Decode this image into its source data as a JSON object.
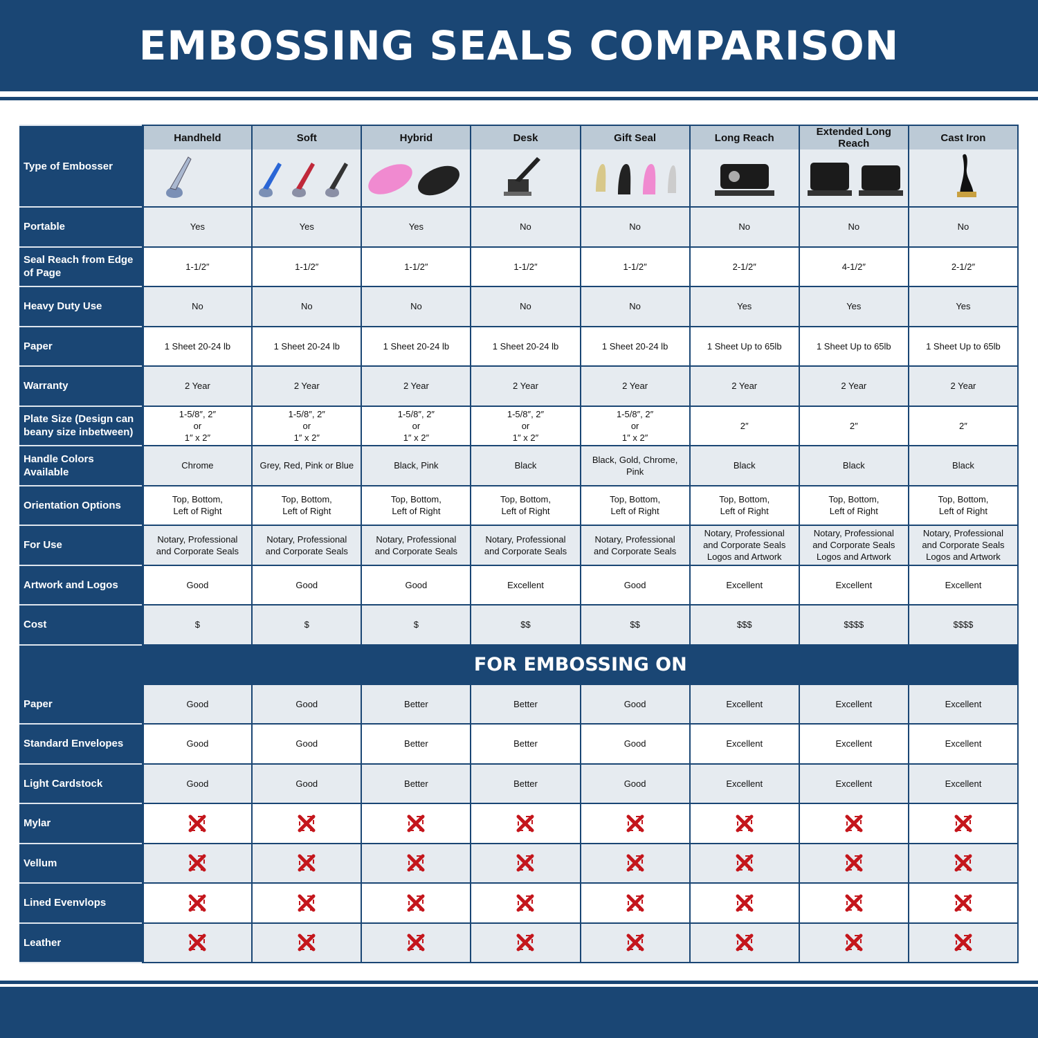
{
  "title": "EMBOSSING SEALS COMPARISON",
  "colors": {
    "brand_blue": "#1a4674",
    "header_grey": "#bccad6",
    "row_grey": "#e6ebf0",
    "x_red": "#c4161c"
  },
  "type_label": "Type of Embosser",
  "columns": [
    "Handheld",
    "Soft",
    "Hybrid",
    "Desk",
    "Gift Seal",
    "Long Reach",
    "Extended Long Reach",
    "Cast Iron"
  ],
  "rows": [
    {
      "label": "Portable",
      "values": [
        "Yes",
        "Yes",
        "Yes",
        "No",
        "No",
        "No",
        "No",
        "No"
      ]
    },
    {
      "label": "Seal Reach from Edge of Page",
      "values": [
        "1-1/2″",
        "1-1/2″",
        "1-1/2″",
        "1-1/2″",
        "1-1/2″",
        "2-1/2″",
        "4-1/2″",
        "2-1/2″"
      ]
    },
    {
      "label": "Heavy Duty Use",
      "values": [
        "No",
        "No",
        "No",
        "No",
        "No",
        "Yes",
        "Yes",
        "Yes"
      ]
    },
    {
      "label": "Paper",
      "values": [
        "1 Sheet 20-24 lb",
        "1 Sheet 20-24 lb",
        "1 Sheet 20-24 lb",
        "1 Sheet 20-24 lb",
        "1 Sheet 20-24 lb",
        "1 Sheet Up to 65lb",
        "1 Sheet Up to 65lb",
        "1 Sheet Up to 65lb"
      ]
    },
    {
      "label": "Warranty",
      "values": [
        "2 Year",
        "2 Year",
        "2 Year",
        "2 Year",
        "2 Year",
        "2 Year",
        "2 Year",
        "2 Year"
      ]
    },
    {
      "label": "Plate Size (Design can beany size inbetween)",
      "values": [
        "1-5/8″, 2″\nor\n1″ x 2″",
        "1-5/8″, 2″\nor\n1″ x 2″",
        "1-5/8″, 2″\nor\n1″ x 2″",
        "1-5/8″, 2″\nor\n1″ x 2″",
        "1-5/8″, 2″\nor\n1″ x 2″",
        "2″",
        "2″",
        "2″"
      ]
    },
    {
      "label": "Handle Colors Available",
      "values": [
        "Chrome",
        "Grey, Red, Pink or Blue",
        "Black, Pink",
        "Black",
        "Black, Gold, Chrome, Pink",
        "Black",
        "Black",
        "Black"
      ]
    },
    {
      "label": "Orientation Options",
      "values": [
        "Top, Bottom,\nLeft of Right",
        "Top, Bottom,\nLeft of Right",
        "Top, Bottom,\nLeft of Right",
        "Top, Bottom,\nLeft of Right",
        "Top, Bottom,\nLeft of Right",
        "Top, Bottom,\nLeft of Right",
        "Top, Bottom,\nLeft of Right",
        "Top, Bottom,\nLeft of Right"
      ]
    },
    {
      "label": "For Use",
      "values": [
        "Notary, Professional\nand Corporate Seals",
        "Notary, Professional\nand Corporate Seals",
        "Notary, Professional\nand Corporate Seals",
        "Notary, Professional\nand Corporate Seals",
        "Notary, Professional\nand Corporate Seals",
        "Notary, Professional\nand Corporate Seals\nLogos and Artwork",
        "Notary, Professional\nand Corporate Seals\nLogos and Artwork",
        "Notary, Professional\nand Corporate Seals\nLogos and Artwork"
      ]
    },
    {
      "label": "Artwork and Logos",
      "values": [
        "Good",
        "Good",
        "Good",
        "Excellent",
        "Good",
        "Excellent",
        "Excellent",
        "Excellent"
      ]
    },
    {
      "label": "Cost",
      "values": [
        "$",
        "$",
        "$",
        "$$",
        "$$",
        "$$$",
        "$$$$",
        "$$$$"
      ]
    }
  ],
  "section_title": "FOR EMBOSSING ON",
  "embossing_rows": [
    {
      "label": "Paper",
      "values": [
        "Good",
        "Good",
        "Better",
        "Better",
        "Good",
        "Excellent",
        "Excellent",
        "Excellent"
      ]
    },
    {
      "label": "Standard Envelopes",
      "values": [
        "Good",
        "Good",
        "Better",
        "Better",
        "Good",
        "Excellent",
        "Excellent",
        "Excellent"
      ]
    },
    {
      "label": "Light Cardstock",
      "values": [
        "Good",
        "Good",
        "Better",
        "Better",
        "Good",
        "Excellent",
        "Excellent",
        "Excellent"
      ]
    },
    {
      "label": "Mylar",
      "icon": "red-x-icon"
    },
    {
      "label": "Vellum",
      "icon": "red-x-icon"
    },
    {
      "label": "Lined Evenvlops",
      "icon": "red-x-icon"
    },
    {
      "label": "Leather",
      "icon": "red-x-icon"
    }
  ]
}
